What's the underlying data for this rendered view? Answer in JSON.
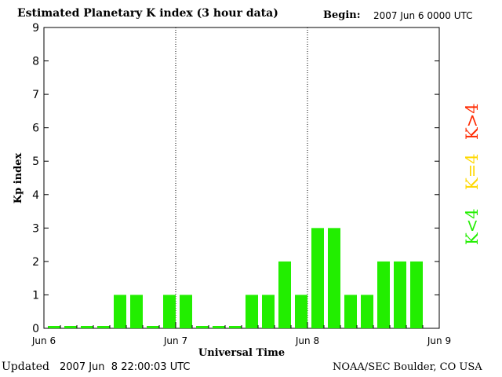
{
  "header": {
    "title": "Estimated Planetary K index (3 hour data)",
    "begin_label": "Begin:",
    "begin_value": "2007 Jun 6 0000 UTC"
  },
  "footer": {
    "updated_label": "Updated",
    "updated_value": "2007 Jun  8 22:00:03 UTC",
    "source": "NOAA/SEC Boulder, CO USA"
  },
  "legend": {
    "high": {
      "label": "K>4",
      "color": "#ff2a00"
    },
    "mid": {
      "label": "K=4",
      "color": "#ffd800"
    },
    "low": {
      "label": "K<4",
      "color": "#22ee00"
    }
  },
  "chart_data": {
    "type": "bar",
    "title": "Estimated Planetary K index (3 hour data)",
    "xlabel": "Universal Time",
    "ylabel": "Kp index",
    "ylim": [
      0,
      9
    ],
    "yticks": [
      "0",
      "1",
      "2",
      "3",
      "4",
      "5",
      "6",
      "7",
      "8",
      "9"
    ],
    "xticks": [
      "Jun 6",
      "Jun 7",
      "Jun 8",
      "Jun 9"
    ],
    "interval_hours": 3,
    "values": [
      0,
      0,
      0,
      0,
      1,
      1,
      0,
      1,
      1,
      0,
      0,
      0,
      1,
      1,
      2,
      1,
      3,
      3,
      1,
      1,
      2,
      2,
      2
    ],
    "day_separators": [
      "Jun 7",
      "Jun 8"
    ],
    "bar_color": "#22ee00",
    "grid": false
  }
}
